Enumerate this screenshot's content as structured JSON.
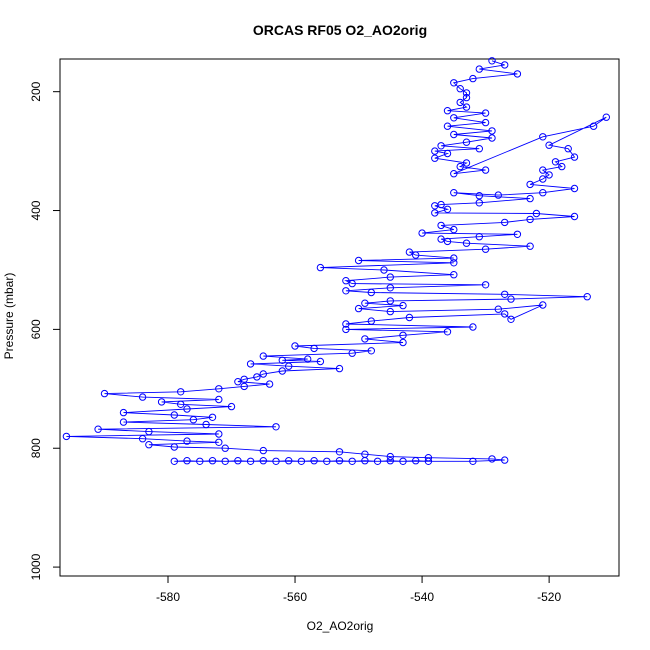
{
  "chart_data": {
    "type": "scatter",
    "title": "ORCAS RF05 O2_AO2orig",
    "xlabel": "O2_AO2orig",
    "ylabel": "Pressure (mbar)",
    "xlim": [
      -597,
      -509
    ],
    "ylim": [
      1015,
      145
    ],
    "y_reversed": true,
    "x_ticks": [
      -580,
      -560,
      -540,
      -520
    ],
    "y_ticks": [
      200,
      400,
      600,
      800,
      1000
    ],
    "grid": false,
    "legend": "none",
    "series_color": "#0000ff",
    "mode": "lines+points",
    "points": [
      [
        -529,
        148
      ],
      [
        -527,
        155
      ],
      [
        -531,
        162
      ],
      [
        -525,
        170
      ],
      [
        -532,
        178
      ],
      [
        -535,
        185
      ],
      [
        -534,
        195
      ],
      [
        -533,
        202
      ],
      [
        -533,
        210
      ],
      [
        -534,
        218
      ],
      [
        -533,
        226
      ],
      [
        -536,
        232
      ],
      [
        -530,
        236
      ],
      [
        -535,
        244
      ],
      [
        -530,
        252
      ],
      [
        -536,
        258
      ],
      [
        -529,
        266
      ],
      [
        -535,
        272
      ],
      [
        -529,
        278
      ],
      [
        -533,
        285
      ],
      [
        -537,
        291
      ],
      [
        -531,
        296
      ],
      [
        -538,
        300
      ],
      [
        -536,
        304
      ],
      [
        -538,
        312
      ],
      [
        -533,
        320
      ],
      [
        -534,
        326
      ],
      [
        -530,
        332
      ],
      [
        -535,
        338
      ],
      [
        -521,
        276
      ],
      [
        -513,
        258
      ],
      [
        -511,
        243
      ],
      [
        -520,
        290
      ],
      [
        -517,
        296
      ],
      [
        -516,
        310
      ],
      [
        -519,
        318
      ],
      [
        -518,
        326
      ],
      [
        -521,
        332
      ],
      [
        -520,
        340
      ],
      [
        -521,
        347
      ],
      [
        -523,
        356
      ],
      [
        -516,
        363
      ],
      [
        -521,
        370
      ],
      [
        -528,
        374
      ],
      [
        -535,
        370
      ],
      [
        -531,
        375
      ],
      [
        -523,
        380
      ],
      [
        -531,
        387
      ],
      [
        -537,
        390
      ],
      [
        -538,
        392
      ],
      [
        -536,
        398
      ],
      [
        -538,
        404
      ],
      [
        -522,
        405
      ],
      [
        -516,
        410
      ],
      [
        -523,
        415
      ],
      [
        -527,
        420
      ],
      [
        -537,
        425
      ],
      [
        -535,
        432
      ],
      [
        -540,
        438
      ],
      [
        -525,
        440
      ],
      [
        -531,
        444
      ],
      [
        -537,
        448
      ],
      [
        -536,
        452
      ],
      [
        -533,
        455
      ],
      [
        -523,
        460
      ],
      [
        -530,
        465
      ],
      [
        -542,
        470
      ],
      [
        -541,
        475
      ],
      [
        -535,
        480
      ],
      [
        -550,
        484
      ],
      [
        -535,
        488
      ],
      [
        -556,
        496
      ],
      [
        -546,
        500
      ],
      [
        -535,
        508
      ],
      [
        -545,
        512
      ],
      [
        -552,
        518
      ],
      [
        -551,
        523
      ],
      [
        -530,
        525
      ],
      [
        -545,
        530
      ],
      [
        -552,
        535
      ],
      [
        -548,
        538
      ],
      [
        -527,
        541
      ],
      [
        -514,
        545
      ],
      [
        -526,
        549
      ],
      [
        -545,
        552
      ],
      [
        -549,
        556
      ],
      [
        -543,
        560
      ],
      [
        -550,
        565
      ],
      [
        -545,
        570
      ],
      [
        -528,
        566
      ],
      [
        -521,
        559
      ],
      [
        -526,
        583
      ],
      [
        -527,
        574
      ],
      [
        -542,
        580
      ],
      [
        -548,
        586
      ],
      [
        -552,
        591
      ],
      [
        -532,
        596
      ],
      [
        -552,
        600
      ],
      [
        -536,
        604
      ],
      [
        -543,
        610
      ],
      [
        -549,
        616
      ],
      [
        -543,
        622
      ],
      [
        -560,
        628
      ],
      [
        -557,
        632
      ],
      [
        -548,
        636
      ],
      [
        -551,
        640
      ],
      [
        -565,
        645
      ],
      [
        -558,
        650
      ],
      [
        -562,
        652
      ],
      [
        -556,
        654
      ],
      [
        -567,
        658
      ],
      [
        -561,
        662
      ],
      [
        -553,
        666
      ],
      [
        -562,
        670
      ],
      [
        -565,
        675
      ],
      [
        -566,
        680
      ],
      [
        -568,
        684
      ],
      [
        -569,
        688
      ],
      [
        -564,
        692
      ],
      [
        -568,
        696
      ],
      [
        -572,
        700
      ],
      [
        -578,
        705
      ],
      [
        -590,
        708
      ],
      [
        -584,
        714
      ],
      [
        -572,
        718
      ],
      [
        -581,
        722
      ],
      [
        -578,
        726
      ],
      [
        -570,
        730
      ],
      [
        -577,
        734
      ],
      [
        -587,
        740
      ],
      [
        -579,
        744
      ],
      [
        -573,
        748
      ],
      [
        -576,
        752
      ],
      [
        -587,
        756
      ],
      [
        -574,
        760
      ],
      [
        -563,
        764
      ],
      [
        -591,
        768
      ],
      [
        -583,
        772
      ],
      [
        -572,
        776
      ],
      [
        -596,
        780
      ],
      [
        -584,
        784
      ],
      [
        -577,
        788
      ],
      [
        -572,
        790
      ],
      [
        -583,
        794
      ],
      [
        -579,
        798
      ],
      [
        -571,
        800
      ],
      [
        -565,
        804
      ],
      [
        -553,
        806
      ],
      [
        -549,
        810
      ],
      [
        -545,
        814
      ],
      [
        -539,
        816
      ],
      [
        -529,
        818
      ],
      [
        -527,
        820
      ],
      [
        -532,
        822
      ],
      [
        -579,
        822
      ],
      [
        -577,
        821
      ],
      [
        -575,
        822
      ],
      [
        -573,
        821
      ],
      [
        -571,
        822
      ],
      [
        -569,
        821
      ],
      [
        -567,
        822
      ],
      [
        -565,
        821
      ],
      [
        -563,
        822
      ],
      [
        -561,
        821
      ],
      [
        -559,
        822
      ],
      [
        -557,
        821
      ],
      [
        -555,
        822
      ],
      [
        -553,
        821
      ],
      [
        -551,
        822
      ],
      [
        -549,
        821
      ],
      [
        -547,
        822
      ],
      [
        -545,
        821
      ],
      [
        -543,
        822
      ],
      [
        -541,
        821
      ],
      [
        -539,
        822
      ]
    ]
  }
}
